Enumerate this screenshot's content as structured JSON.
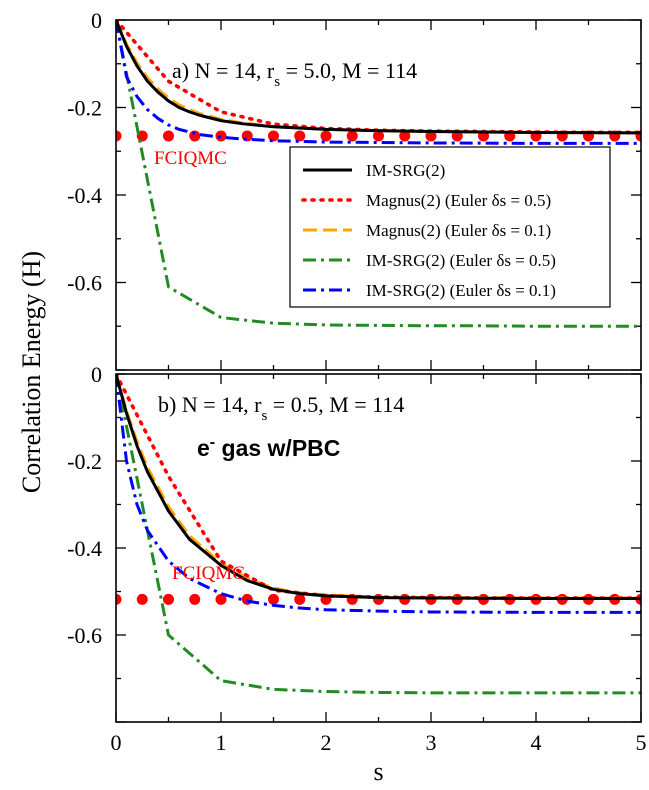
{
  "chart_data": [
    {
      "panel": "a",
      "type": "line",
      "title_parts": [
        "a)  N = 14, r",
        "s",
        " = 5.0, M = 114"
      ],
      "xlabel": "s",
      "ylabel": "Correlation Energy (H)",
      "xlim": [
        0,
        5
      ],
      "ylim": [
        -0.8,
        0
      ],
      "xticks": [
        0,
        1,
        2,
        3,
        4,
        5
      ],
      "yticks": [
        0,
        -0.2,
        -0.4,
        -0.6
      ],
      "ytick_labels": [
        "0",
        "-0.2",
        "-0.4",
        "-0.6"
      ],
      "legend": {
        "placement": "center-right"
      },
      "reference": {
        "name": "FCIQMC",
        "value": -0.265,
        "x": [
          0,
          0.25,
          0.5,
          0.75,
          1.0,
          1.25,
          1.5,
          1.75,
          2.0,
          2.25,
          2.5,
          2.75,
          3.0,
          3.25,
          3.5,
          3.75,
          4.0,
          4.25,
          4.5,
          4.75,
          5.0
        ],
        "color": "#ff0000"
      },
      "series": [
        {
          "name_parts": [
            "IM-SRG(2)"
          ],
          "color": "#000000",
          "style": "solid",
          "x": [
            0,
            0.1,
            0.2,
            0.3,
            0.4,
            0.5,
            0.6,
            0.7,
            0.8,
            1.0,
            1.2,
            1.5,
            2.0,
            2.5,
            3.0,
            4.0,
            5.0
          ],
          "y": [
            0,
            -0.06,
            -0.105,
            -0.14,
            -0.165,
            -0.185,
            -0.2,
            -0.21,
            -0.218,
            -0.23,
            -0.237,
            -0.244,
            -0.25,
            -0.253,
            -0.255,
            -0.257,
            -0.258
          ]
        },
        {
          "name_parts": [
            "Magnus(2) (Euler ",
            "δ",
            "s = 0.5)"
          ],
          "color": "#ff0000",
          "style": "dotted",
          "x": [
            0,
            0.5,
            1.0,
            1.5,
            2.0,
            2.5,
            3.0,
            3.5,
            4.0,
            4.5,
            5.0
          ],
          "y": [
            0,
            -0.14,
            -0.21,
            -0.238,
            -0.248,
            -0.252,
            -0.254,
            -0.255,
            -0.256,
            -0.257,
            -0.257
          ]
        },
        {
          "name_parts": [
            "Magnus(2) (Euler ",
            "δ",
            "s = 0.1)"
          ],
          "color": "#ffa500",
          "style": "dashed",
          "x": [
            0,
            0.1,
            0.2,
            0.3,
            0.4,
            0.5,
            0.6,
            0.7,
            0.8,
            1.0,
            1.2,
            1.5,
            2.0,
            2.5,
            3.0,
            4.0,
            5.0
          ],
          "y": [
            0,
            -0.055,
            -0.098,
            -0.132,
            -0.158,
            -0.178,
            -0.194,
            -0.205,
            -0.214,
            -0.227,
            -0.235,
            -0.243,
            -0.25,
            -0.253,
            -0.255,
            -0.257,
            -0.258
          ]
        },
        {
          "name_parts": [
            "IM-SRG(2) (Euler ",
            "δ",
            "s = 0.5)"
          ],
          "color": "#228b22",
          "style": "dashdot",
          "x": [
            0,
            0.5,
            1.0,
            1.5,
            2.0,
            2.5,
            3.0,
            3.5,
            4.0,
            4.5,
            5.0
          ],
          "y": [
            0,
            -0.61,
            -0.68,
            -0.693,
            -0.697,
            -0.698,
            -0.699,
            -0.699,
            -0.7,
            -0.7,
            -0.7
          ]
        },
        {
          "name_parts": [
            "IM-SRG(2) (Euler ",
            "δ",
            "s = 0.1)"
          ],
          "color": "#0000ff",
          "style": "dashdot",
          "x": [
            0,
            0.1,
            0.2,
            0.3,
            0.4,
            0.5,
            0.6,
            0.8,
            1.0,
            1.2,
            1.5,
            2.0,
            3.0,
            4.0,
            5.0
          ],
          "y": [
            0,
            -0.13,
            -0.175,
            -0.205,
            -0.225,
            -0.24,
            -0.25,
            -0.262,
            -0.268,
            -0.272,
            -0.276,
            -0.279,
            -0.281,
            -0.282,
            -0.282
          ]
        }
      ]
    },
    {
      "panel": "b",
      "type": "line",
      "title_parts": [
        "b) N = 14, r",
        "s",
        " = 0.5, M = 114"
      ],
      "subtitle_parts": [
        "e",
        "-",
        " gas w/PBC"
      ],
      "xlabel": "s",
      "ylabel": "Correlation Energy (H)",
      "xlim": [
        0,
        5
      ],
      "ylim": [
        -0.8,
        0
      ],
      "xticks": [
        0,
        1,
        2,
        3,
        4,
        5
      ],
      "yticks": [
        0,
        -0.2,
        -0.4,
        -0.6
      ],
      "ytick_labels": [
        "0",
        "-0.2",
        "-0.4",
        "-0.6"
      ],
      "reference": {
        "name": "FCIQMC",
        "value": -0.518,
        "x": [
          0,
          0.25,
          0.5,
          0.75,
          1.0,
          1.25,
          1.5,
          1.75,
          2.0,
          2.25,
          2.5,
          2.75,
          3.0,
          3.25,
          3.5,
          3.75,
          4.0,
          4.25,
          4.5,
          4.75,
          5.0
        ],
        "color": "#ff0000"
      },
      "series": [
        {
          "name": "IM-SRG(2)",
          "color": "#000000",
          "style": "solid",
          "x": [
            0,
            0.1,
            0.2,
            0.3,
            0.5,
            0.7,
            1.0,
            1.25,
            1.5,
            1.75,
            2.0,
            2.5,
            3.0,
            4.0,
            5.0
          ],
          "y": [
            0,
            -0.09,
            -0.165,
            -0.225,
            -0.315,
            -0.38,
            -0.44,
            -0.475,
            -0.495,
            -0.505,
            -0.51,
            -0.514,
            -0.515,
            -0.516,
            -0.516
          ]
        },
        {
          "name": "Magnus(2) (Euler δs = 0.5)",
          "color": "#ff0000",
          "style": "dotted",
          "x": [
            0,
            0.5,
            1.0,
            1.5,
            2.0,
            2.5,
            3.0,
            3.5,
            4.0,
            4.5,
            5.0
          ],
          "y": [
            0,
            -0.235,
            -0.43,
            -0.497,
            -0.51,
            -0.513,
            -0.514,
            -0.515,
            -0.515,
            -0.515,
            -0.515
          ]
        },
        {
          "name": "Magnus(2) (Euler δs = 0.1)",
          "color": "#ffa500",
          "style": "dashed",
          "x": [
            0,
            0.1,
            0.2,
            0.3,
            0.5,
            0.7,
            1.0,
            1.25,
            1.5,
            1.75,
            2.0,
            2.5,
            3.0,
            4.0,
            5.0
          ],
          "y": [
            0,
            -0.085,
            -0.155,
            -0.215,
            -0.305,
            -0.372,
            -0.435,
            -0.47,
            -0.492,
            -0.503,
            -0.508,
            -0.513,
            -0.514,
            -0.515,
            -0.515
          ]
        },
        {
          "name": "IM-SRG(2) (Euler δs = 0.5)",
          "color": "#228b22",
          "style": "dashdot",
          "x": [
            0,
            0.5,
            1.0,
            1.5,
            2.0,
            2.5,
            3.0,
            3.5,
            4.0,
            4.5,
            5.0
          ],
          "y": [
            0,
            -0.6,
            -0.705,
            -0.725,
            -0.73,
            -0.732,
            -0.733,
            -0.733,
            -0.733,
            -0.733,
            -0.733
          ]
        },
        {
          "name": "IM-SRG(2) (Euler δs = 0.1)",
          "color": "#0000ff",
          "style": "dashdot",
          "x": [
            0,
            0.1,
            0.2,
            0.3,
            0.5,
            0.7,
            1.0,
            1.25,
            1.5,
            1.75,
            2.0,
            2.5,
            3.0,
            4.0,
            5.0
          ],
          "y": [
            0,
            -0.2,
            -0.3,
            -0.36,
            -0.43,
            -0.47,
            -0.505,
            -0.522,
            -0.532,
            -0.538,
            -0.542,
            -0.545,
            -0.547,
            -0.548,
            -0.548
          ]
        }
      ]
    }
  ]
}
